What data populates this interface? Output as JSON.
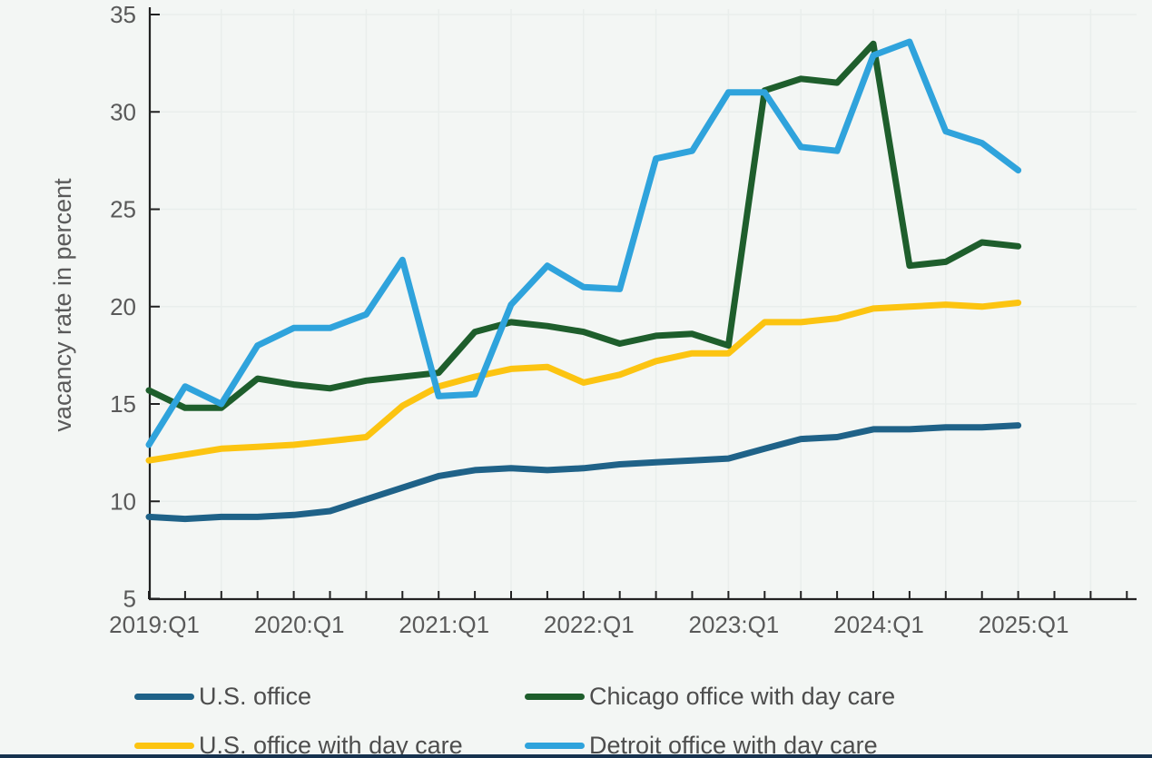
{
  "figure": {
    "background_color": "#f3f6f4",
    "gridline_color": "#e9eeec",
    "axis_color": "#222222",
    "tick_text_color": "#595959",
    "legend_text_color": "#4d4d4d",
    "bottom_edge_color": "#16324f"
  },
  "chart_data": {
    "type": "line",
    "title": "",
    "xlabel": "",
    "ylabel": "vacancy rate in percent",
    "ylim": [
      5,
      35
    ],
    "y_ticks": [
      5,
      10,
      15,
      20,
      25,
      30,
      35
    ],
    "x_tick_labels": [
      "2019:Q1",
      "2020:Q1",
      "2021:Q1",
      "2022:Q1",
      "2023:Q1",
      "2024:Q1",
      "2025:Q1"
    ],
    "grid": true,
    "legend_position": "bottom",
    "categories": [
      "2019:Q1",
      "2019:Q2",
      "2019:Q3",
      "2019:Q4",
      "2020:Q1",
      "2020:Q2",
      "2020:Q3",
      "2020:Q4",
      "2021:Q1",
      "2021:Q2",
      "2021:Q3",
      "2021:Q4",
      "2022:Q1",
      "2022:Q2",
      "2022:Q3",
      "2022:Q4",
      "2023:Q1",
      "2023:Q2",
      "2023:Q3",
      "2023:Q4",
      "2024:Q1",
      "2024:Q2",
      "2024:Q3",
      "2024:Q4",
      "2025:Q1"
    ],
    "series": [
      {
        "name": "U.S. office",
        "color": "#1f6288",
        "values": [
          9.2,
          9.1,
          9.2,
          9.2,
          9.3,
          9.5,
          10.1,
          10.7,
          11.3,
          11.6,
          11.7,
          11.6,
          11.7,
          11.9,
          12.0,
          12.1,
          12.2,
          12.7,
          13.2,
          13.3,
          13.7,
          13.7,
          13.8,
          13.8,
          13.9
        ]
      },
      {
        "name": "U.S. office with day care",
        "color": "#fcc411",
        "values": [
          12.1,
          12.4,
          12.7,
          12.8,
          12.9,
          13.1,
          13.3,
          14.9,
          15.9,
          16.4,
          16.8,
          16.9,
          16.1,
          16.5,
          17.2,
          17.6,
          17.6,
          19.2,
          19.2,
          19.4,
          19.9,
          20.0,
          20.1,
          20.0,
          20.2
        ]
      },
      {
        "name": "Chicago office with day care",
        "color": "#1e5e2c",
        "values": [
          15.7,
          14.8,
          14.8,
          16.3,
          16.0,
          15.8,
          16.2,
          16.4,
          16.6,
          18.7,
          19.2,
          19.0,
          18.7,
          18.1,
          18.5,
          18.6,
          18.0,
          31.1,
          31.7,
          31.5,
          33.5,
          22.1,
          22.3,
          23.3,
          23.1
        ]
      },
      {
        "name": "Detroit office with day care",
        "color": "#2fa3dc",
        "values": [
          12.9,
          15.9,
          15.0,
          18.0,
          18.9,
          18.9,
          19.6,
          22.4,
          15.4,
          15.5,
          20.1,
          22.1,
          21.0,
          20.9,
          27.6,
          28.0,
          31.0,
          31.0,
          28.2,
          28.0,
          32.9,
          33.6,
          29.0,
          28.4,
          27.0
        ]
      }
    ]
  }
}
